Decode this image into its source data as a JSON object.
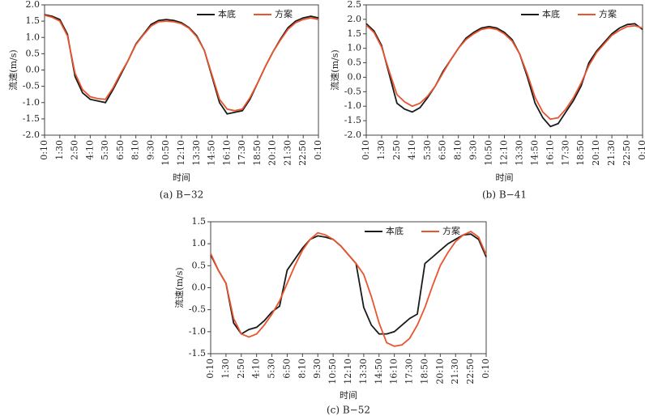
{
  "chart_data": [
    {
      "type": "line",
      "caption": "(a) B−32",
      "xlabel": "时间",
      "ylabel": "流速(m/s)",
      "legend": "upper right",
      "categories": [
        "0:10",
        null,
        "1:30",
        null,
        "2:50",
        null,
        "4:10",
        null,
        "5:30",
        null,
        "6:50",
        null,
        "8:10",
        null,
        "9:30",
        null,
        "10:50",
        null,
        "12:10",
        null,
        "13:30",
        null,
        "14:50",
        null,
        "16:10",
        null,
        "17:30",
        null,
        "18:50",
        null,
        "20:10",
        null,
        "21:30",
        null,
        "22:50",
        null,
        "0:10"
      ],
      "ylim": [
        -2,
        2
      ],
      "yticks": [
        {
          "value": -2,
          "label": "-2.0"
        },
        {
          "value": -1.5,
          "label": "-1.5"
        },
        {
          "value": -1,
          "label": "-1.0"
        },
        {
          "value": -0.5,
          "label": "-0.5"
        },
        {
          "value": 0,
          "label": "0.0"
        },
        {
          "value": 0.5,
          "label": "0.5"
        },
        {
          "value": 1,
          "label": "1.0"
        },
        {
          "value": 1.5,
          "label": "1.5"
        },
        {
          "value": 2,
          "label": "2.0"
        }
      ],
      "series": [
        {
          "name": "本底",
          "color": "#1a1a1a",
          "values": [
            1.7,
            1.65,
            1.55,
            1.1,
            -0.2,
            -0.7,
            -0.9,
            -0.95,
            -1.0,
            -0.6,
            -0.15,
            0.3,
            0.8,
            1.1,
            1.4,
            1.52,
            1.55,
            1.52,
            1.45,
            1.3,
            1.05,
            0.6,
            -0.2,
            -1.0,
            -1.35,
            -1.3,
            -1.25,
            -0.9,
            -0.4,
            0.1,
            0.55,
            0.95,
            1.3,
            1.5,
            1.6,
            1.65,
            1.6
          ]
        },
        {
          "name": "方案",
          "color": "#e8552f",
          "values": [
            1.68,
            1.62,
            1.5,
            1.05,
            -0.1,
            -0.6,
            -0.82,
            -0.88,
            -0.9,
            -0.55,
            -0.1,
            0.3,
            0.78,
            1.08,
            1.35,
            1.48,
            1.5,
            1.48,
            1.42,
            1.28,
            1.02,
            0.6,
            -0.15,
            -0.9,
            -1.2,
            -1.25,
            -1.2,
            -0.85,
            -0.4,
            0.1,
            0.55,
            0.92,
            1.25,
            1.45,
            1.55,
            1.6,
            1.55
          ]
        }
      ]
    },
    {
      "type": "line",
      "caption": "(b) B−41",
      "xlabel": "时间",
      "ylabel": "流速(m/s)",
      "legend": "upper right",
      "categories": [
        "0:10",
        null,
        "1:30",
        null,
        "2:50",
        null,
        "4:10",
        null,
        "5:30",
        null,
        "6:50",
        null,
        "8:10",
        null,
        "9:30",
        null,
        "10:50",
        null,
        "12:10",
        null,
        "13:30",
        null,
        "14:50",
        null,
        "16:10",
        null,
        "17:30",
        null,
        "18:50",
        null,
        "20:10",
        null,
        "21:30",
        null,
        "22:50",
        null,
        "0:10"
      ],
      "ylim": [
        -2,
        2.5
      ],
      "yticks": [
        {
          "value": -2,
          "label": "-2.0"
        },
        {
          "value": -1.5,
          "label": "-1.5"
        },
        {
          "value": -1,
          "label": "-1.0"
        },
        {
          "value": -0.5,
          "label": "-0.5"
        },
        {
          "value": 0,
          "label": "0.0"
        },
        {
          "value": 0.5,
          "label": "0.5"
        },
        {
          "value": 1,
          "label": "1.0"
        },
        {
          "value": 1.5,
          "label": "1.5"
        },
        {
          "value": 2,
          "label": "2.0"
        },
        {
          "value": 2.5,
          "label": "2.5"
        }
      ],
      "series": [
        {
          "name": "本底",
          "color": "#1a1a1a",
          "values": [
            1.85,
            1.6,
            1.1,
            0.1,
            -0.9,
            -1.1,
            -1.2,
            -1.05,
            -0.7,
            -0.3,
            0.2,
            0.6,
            1.0,
            1.35,
            1.55,
            1.7,
            1.75,
            1.7,
            1.55,
            1.3,
            0.8,
            0.0,
            -0.9,
            -1.4,
            -1.7,
            -1.6,
            -1.2,
            -0.8,
            -0.3,
            0.5,
            0.9,
            1.2,
            1.5,
            1.7,
            1.82,
            1.85,
            1.65
          ]
        },
        {
          "name": "方案",
          "color": "#e8552f",
          "values": [
            1.8,
            1.55,
            1.05,
            0.2,
            -0.6,
            -0.85,
            -1.0,
            -0.9,
            -0.65,
            -0.3,
            0.15,
            0.6,
            1.0,
            1.3,
            1.5,
            1.65,
            1.7,
            1.65,
            1.5,
            1.25,
            0.8,
            0.1,
            -0.7,
            -1.2,
            -1.45,
            -1.4,
            -1.1,
            -0.7,
            -0.2,
            0.4,
            0.85,
            1.15,
            1.45,
            1.62,
            1.75,
            1.78,
            1.7
          ]
        }
      ]
    },
    {
      "type": "line",
      "caption": "(c) B−52",
      "xlabel": "时间",
      "ylabel": "流速(m/s)",
      "legend": "upper right",
      "categories": [
        "0:10",
        null,
        "1:30",
        null,
        "2:50",
        null,
        "4:10",
        null,
        "5:30",
        null,
        "6:50",
        null,
        "8:10",
        null,
        "9:30",
        null,
        "10:50",
        null,
        "12:10",
        null,
        "13:30",
        null,
        "14:50",
        null,
        "16:10",
        null,
        "17:30",
        null,
        "18:50",
        null,
        "20:10",
        null,
        "21:30",
        null,
        "22:50",
        null,
        "0:10"
      ],
      "ylim": [
        -1.5,
        1.5
      ],
      "yticks": [
        {
          "value": -1.5,
          "label": "-1.5"
        },
        {
          "value": -1,
          "label": "-1.0"
        },
        {
          "value": -0.5,
          "label": "-0.5"
        },
        {
          "value": 0,
          "label": "0.0"
        },
        {
          "value": 0.5,
          "label": "0.5"
        },
        {
          "value": 1,
          "label": "1.0"
        },
        {
          "value": 1.5,
          "label": "1.5"
        }
      ],
      "series": [
        {
          "name": "本底",
          "color": "#1a1a1a",
          "values": [
            0.75,
            0.4,
            0.1,
            -0.8,
            -1.05,
            -0.95,
            -0.9,
            -0.75,
            -0.55,
            -0.42,
            0.4,
            0.65,
            0.9,
            1.1,
            1.18,
            1.15,
            1.1,
            0.95,
            0.75,
            0.55,
            -0.45,
            -0.85,
            -1.05,
            -1.05,
            -1.0,
            -0.85,
            -0.7,
            -0.6,
            0.55,
            0.7,
            0.85,
            1.0,
            1.1,
            1.2,
            1.22,
            1.1,
            0.7
          ]
        },
        {
          "name": "方案",
          "color": "#e8552f",
          "values": [
            0.78,
            0.4,
            0.1,
            -0.7,
            -1.05,
            -1.12,
            -1.05,
            -0.85,
            -0.6,
            -0.3,
            0.1,
            0.5,
            0.85,
            1.1,
            1.25,
            1.2,
            1.1,
            0.95,
            0.75,
            0.55,
            0.3,
            -0.2,
            -0.8,
            -1.25,
            -1.33,
            -1.3,
            -1.15,
            -0.85,
            -0.45,
            0.05,
            0.5,
            0.8,
            1.05,
            1.2,
            1.28,
            1.15,
            0.75
          ]
        }
      ]
    }
  ]
}
